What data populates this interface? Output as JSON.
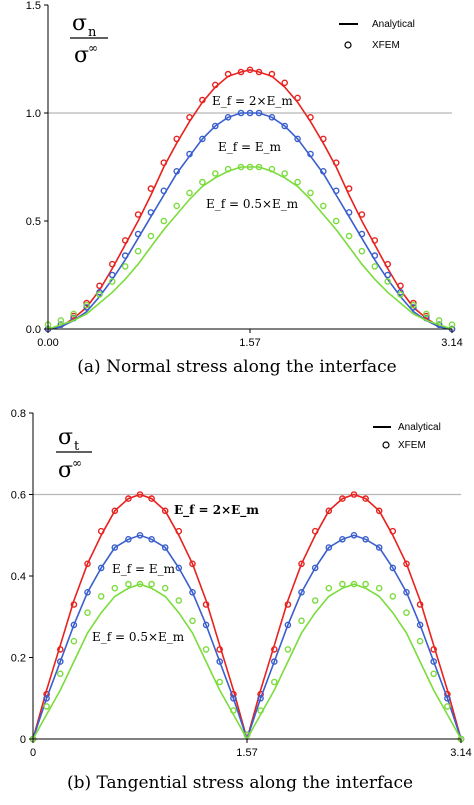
{
  "chart_data": [
    {
      "type": "line",
      "caption": "(a) Normal stress along the interface",
      "y_symbol": {
        "num": "σ",
        "num_sub": "n",
        "den": "σ",
        "den_sup": "∞"
      },
      "xlim": [
        0,
        3.14
      ],
      "ylim": [
        0,
        1.5
      ],
      "x_ticks": [
        {
          "v": 0,
          "label": "0.00"
        },
        {
          "v": 1.57,
          "label": "1.57"
        },
        {
          "v": 3.14,
          "label": "3.14"
        }
      ],
      "y_ticks": [
        {
          "v": 0,
          "label": "0.0"
        },
        {
          "v": 0.5,
          "label": "0.5"
        },
        {
          "v": 1.0,
          "label": "1.0"
        },
        {
          "v": 1.5,
          "label": "1.5"
        }
      ],
      "reference_lines": [
        1.0
      ],
      "legend": {
        "position": "top-right",
        "entries": [
          "Analytical",
          "XFEM"
        ]
      },
      "curve_labels": [
        "E_f = 2×E_m",
        "E_f = E_m",
        "E_f = 0.5×E_m"
      ],
      "series": [
        {
          "name": "E_f = 2×E_m",
          "color": "#e8221e",
          "peak": 1.2
        },
        {
          "name": "E_f = E_m",
          "color": "#3a5fcd",
          "peak": 1.0
        },
        {
          "name": "E_f = 0.5×E_m",
          "color": "#7bdc3c",
          "peak": 0.75
        }
      ],
      "x": [
        0,
        0.1,
        0.2,
        0.3,
        0.4,
        0.5,
        0.6,
        0.7,
        0.8,
        0.9,
        1.0,
        1.1,
        1.2,
        1.3,
        1.4,
        1.5,
        1.57,
        1.64,
        1.74,
        1.84,
        1.94,
        2.04,
        2.14,
        2.24,
        2.34,
        2.44,
        2.54,
        2.64,
        2.74,
        2.84,
        2.94,
        3.04,
        3.14
      ],
      "analytical": {
        "E_f = 2×E_m": [
          0.0,
          0.01,
          0.05,
          0.1,
          0.18,
          0.28,
          0.39,
          0.5,
          0.62,
          0.75,
          0.86,
          0.96,
          1.05,
          1.12,
          1.17,
          1.19,
          1.2,
          1.19,
          1.17,
          1.12,
          1.05,
          0.96,
          0.86,
          0.75,
          0.62,
          0.5,
          0.39,
          0.28,
          0.18,
          0.1,
          0.05,
          0.01,
          0.0
        ],
        "E_f = E_m": [
          0.0,
          0.01,
          0.04,
          0.08,
          0.15,
          0.23,
          0.32,
          0.42,
          0.52,
          0.62,
          0.72,
          0.8,
          0.88,
          0.94,
          0.98,
          1.0,
          1.0,
          1.0,
          0.98,
          0.94,
          0.88,
          0.8,
          0.72,
          0.62,
          0.52,
          0.42,
          0.32,
          0.23,
          0.15,
          0.08,
          0.04,
          0.01,
          0.0
        ],
        "E_f = 0.5×E_m": [
          0.0,
          0.02,
          0.04,
          0.07,
          0.12,
          0.17,
          0.23,
          0.3,
          0.38,
          0.46,
          0.53,
          0.6,
          0.66,
          0.7,
          0.73,
          0.75,
          0.75,
          0.75,
          0.73,
          0.7,
          0.66,
          0.6,
          0.53,
          0.46,
          0.38,
          0.3,
          0.23,
          0.17,
          0.12,
          0.07,
          0.04,
          0.02,
          0.0
        ]
      },
      "xfem": {
        "E_f = 2×E_m": [
          0.0,
          0.02,
          0.06,
          0.12,
          0.2,
          0.3,
          0.41,
          0.53,
          0.65,
          0.77,
          0.88,
          0.98,
          1.06,
          1.13,
          1.18,
          1.19,
          1.2,
          1.19,
          1.18,
          1.14,
          1.07,
          0.98,
          0.88,
          0.77,
          0.65,
          0.53,
          0.41,
          0.3,
          0.2,
          0.12,
          0.06,
          0.02,
          0.0
        ],
        "E_f = E_m": [
          0.0,
          0.02,
          0.05,
          0.1,
          0.17,
          0.25,
          0.34,
          0.44,
          0.54,
          0.64,
          0.73,
          0.81,
          0.88,
          0.94,
          0.98,
          1.0,
          1.0,
          1.0,
          0.98,
          0.94,
          0.88,
          0.81,
          0.73,
          0.64,
          0.54,
          0.44,
          0.34,
          0.25,
          0.17,
          0.1,
          0.05,
          0.02,
          0.0
        ],
        "E_f = 0.5×E_m": [
          0.02,
          0.04,
          0.07,
          0.11,
          0.16,
          0.22,
          0.29,
          0.36,
          0.43,
          0.5,
          0.57,
          0.63,
          0.68,
          0.72,
          0.74,
          0.75,
          0.75,
          0.75,
          0.74,
          0.72,
          0.68,
          0.63,
          0.57,
          0.5,
          0.43,
          0.36,
          0.29,
          0.22,
          0.16,
          0.11,
          0.07,
          0.04,
          0.02
        ]
      }
    },
    {
      "type": "line",
      "caption": "(b) Tangential stress along the interface",
      "y_symbol": {
        "num": "σ",
        "num_sub": "t",
        "den": "σ",
        "den_sup": "∞"
      },
      "xlim": [
        0,
        3.14
      ],
      "ylim": [
        0,
        0.8
      ],
      "x_ticks": [
        {
          "v": 0,
          "label": "0"
        },
        {
          "v": 1.57,
          "label": "1.57"
        },
        {
          "v": 3.14,
          "label": "3.14"
        }
      ],
      "y_ticks": [
        {
          "v": 0,
          "label": "0"
        },
        {
          "v": 0.2,
          "label": "0.2"
        },
        {
          "v": 0.4,
          "label": "0.4"
        },
        {
          "v": 0.6,
          "label": "0.6"
        },
        {
          "v": 0.8,
          "label": "0.8"
        }
      ],
      "reference_lines": [
        0.6
      ],
      "legend": {
        "position": "top-right",
        "entries": [
          "Analytical",
          "XFEM"
        ]
      },
      "curve_labels": [
        "E_f = 2×E_m",
        "E_f = E_m",
        "E_f = 0.5×E_m"
      ],
      "series": [
        {
          "name": "E_f = 2×E_m",
          "color": "#e8221e",
          "peak": 0.6
        },
        {
          "name": "E_f = E_m",
          "color": "#3a5fcd",
          "peak": 0.5
        },
        {
          "name": "E_f = 0.5×E_m",
          "color": "#7bdc3c",
          "peak": 0.38
        }
      ],
      "x": [
        0,
        0.1,
        0.2,
        0.3,
        0.4,
        0.5,
        0.6,
        0.7,
        0.785,
        0.87,
        0.97,
        1.07,
        1.17,
        1.27,
        1.37,
        1.47,
        1.57,
        1.67,
        1.77,
        1.87,
        1.97,
        2.07,
        2.17,
        2.27,
        2.355,
        2.44,
        2.54,
        2.64,
        2.74,
        2.84,
        2.94,
        3.04,
        3.14
      ],
      "analytical": {
        "E_f = 2×E_m": [
          0.0,
          0.12,
          0.23,
          0.34,
          0.43,
          0.5,
          0.56,
          0.59,
          0.6,
          0.59,
          0.56,
          0.5,
          0.43,
          0.34,
          0.23,
          0.12,
          0.0,
          0.12,
          0.23,
          0.34,
          0.43,
          0.5,
          0.56,
          0.59,
          0.6,
          0.59,
          0.56,
          0.5,
          0.43,
          0.34,
          0.23,
          0.12,
          0.0
        ],
        "E_f = E_m": [
          0.0,
          0.1,
          0.19,
          0.28,
          0.36,
          0.42,
          0.47,
          0.49,
          0.5,
          0.49,
          0.47,
          0.42,
          0.36,
          0.28,
          0.19,
          0.1,
          0.0,
          0.1,
          0.19,
          0.28,
          0.36,
          0.42,
          0.47,
          0.49,
          0.5,
          0.49,
          0.47,
          0.42,
          0.36,
          0.28,
          0.19,
          0.1,
          0.0
        ],
        "E_f = 0.5×E_m": [
          0.0,
          0.06,
          0.12,
          0.19,
          0.26,
          0.31,
          0.35,
          0.37,
          0.38,
          0.37,
          0.35,
          0.31,
          0.26,
          0.19,
          0.12,
          0.06,
          0.0,
          0.06,
          0.12,
          0.19,
          0.26,
          0.31,
          0.35,
          0.37,
          0.38,
          0.37,
          0.35,
          0.31,
          0.26,
          0.19,
          0.12,
          0.06,
          0.0
        ]
      },
      "xfem": {
        "E_f = 2×E_m": [
          0.0,
          0.11,
          0.22,
          0.33,
          0.43,
          0.51,
          0.56,
          0.59,
          0.6,
          0.59,
          0.56,
          0.51,
          0.43,
          0.33,
          0.22,
          0.11,
          0.01,
          0.11,
          0.22,
          0.33,
          0.43,
          0.51,
          0.56,
          0.59,
          0.6,
          0.59,
          0.56,
          0.51,
          0.43,
          0.33,
          0.22,
          0.11,
          0.0
        ],
        "E_f = E_m": [
          0.0,
          0.1,
          0.19,
          0.28,
          0.36,
          0.42,
          0.47,
          0.49,
          0.5,
          0.49,
          0.47,
          0.42,
          0.36,
          0.28,
          0.19,
          0.1,
          0.01,
          0.1,
          0.19,
          0.28,
          0.36,
          0.42,
          0.47,
          0.49,
          0.5,
          0.49,
          0.47,
          0.42,
          0.36,
          0.28,
          0.19,
          0.1,
          0.0
        ],
        "E_f = 0.5×E_m": [
          0.0,
          0.08,
          0.16,
          0.24,
          0.31,
          0.35,
          0.37,
          0.38,
          0.38,
          0.38,
          0.37,
          0.34,
          0.29,
          0.22,
          0.14,
          0.07,
          0.01,
          0.07,
          0.14,
          0.22,
          0.29,
          0.34,
          0.37,
          0.38,
          0.38,
          0.38,
          0.37,
          0.35,
          0.31,
          0.24,
          0.16,
          0.08,
          0.0
        ]
      }
    }
  ]
}
